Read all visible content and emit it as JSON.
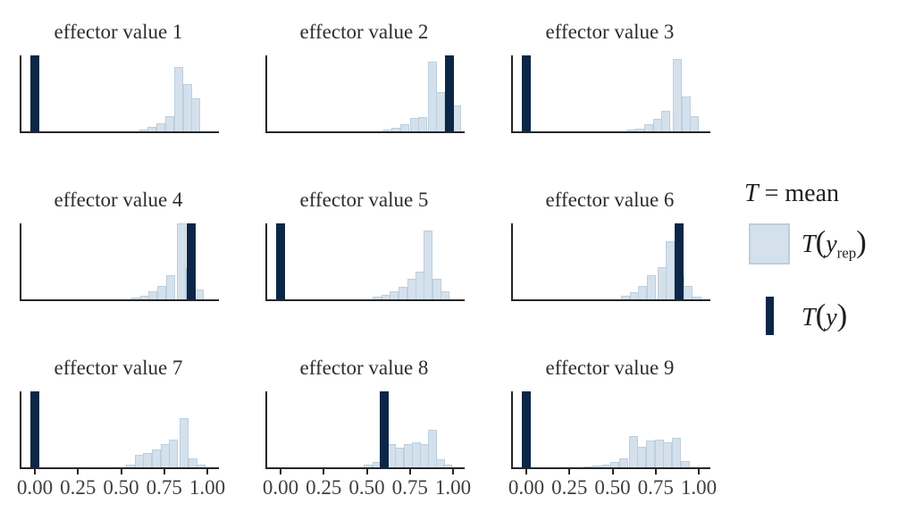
{
  "figure": {
    "background": "#ffffff"
  },
  "legend": {
    "symbol": "T",
    "definition": "= mean",
    "yrep": {
      "t": "T",
      "open": "(",
      "y": "y",
      "sub": "rep",
      "close": ")"
    },
    "y": {
      "t": "T",
      "open": "(",
      "y": "y",
      "close": ")"
    }
  },
  "axis": {
    "tick_labels": [
      "0.00",
      "0.25",
      "0.50",
      "0.75",
      "1.00"
    ],
    "tick_values": [
      0,
      0.25,
      0.5,
      0.75,
      1
    ]
  },
  "chart_data": {
    "type": "histogram-grid",
    "title": "",
    "stat": "mean",
    "xlabel": "",
    "ylabel": "",
    "xlim": [
      -0.08,
      1.07
    ],
    "binwidth": 0.05,
    "grid": false,
    "legend_position": "right",
    "series_legend": [
      {
        "name": "T(y_rep)",
        "style": "light-histogram"
      },
      {
        "name": "T(y)",
        "style": "dark-bar"
      }
    ],
    "colors": {
      "t_yrep_fill": "#d4e1ec",
      "t_yrep_border": "#bccfdd",
      "t_y": "#0c2647",
      "axis": "#262626",
      "tick_text": "#3f3f3f"
    },
    "panels": [
      {
        "title": "effector value 1",
        "t_y": 0.0,
        "show_axis": false,
        "bars": [
          [
            0.63,
            0.02
          ],
          [
            0.68,
            0.06
          ],
          [
            0.73,
            0.11
          ],
          [
            0.78,
            0.2
          ],
          [
            0.835,
            0.85
          ],
          [
            0.885,
            0.62
          ],
          [
            0.935,
            0.44
          ]
        ]
      },
      {
        "title": "effector value 2",
        "t_y": 0.98,
        "show_axis": false,
        "bars": [
          [
            0.62,
            0.02
          ],
          [
            0.67,
            0.05
          ],
          [
            0.72,
            0.09
          ],
          [
            0.775,
            0.18
          ],
          [
            0.825,
            0.19
          ],
          [
            0.88,
            0.92
          ],
          [
            0.93,
            0.52
          ],
          [
            1.02,
            0.34
          ]
        ]
      },
      {
        "title": "effector value 3",
        "t_y": 0.0,
        "show_axis": false,
        "bars": [
          [
            0.61,
            0.02
          ],
          [
            0.66,
            0.04
          ],
          [
            0.71,
            0.09
          ],
          [
            0.76,
            0.16
          ],
          [
            0.81,
            0.27
          ],
          [
            0.875,
            0.95
          ],
          [
            0.925,
            0.46
          ],
          [
            0.975,
            0.2
          ]
        ]
      },
      {
        "title": "effector value 4",
        "t_y": 0.905,
        "show_axis": false,
        "bars": [
          [
            0.585,
            0.02
          ],
          [
            0.635,
            0.05
          ],
          [
            0.685,
            0.1
          ],
          [
            0.735,
            0.18
          ],
          [
            0.785,
            0.32
          ],
          [
            0.85,
            1.0
          ],
          [
            0.9,
            0.41
          ],
          [
            0.955,
            0.13
          ]
        ]
      },
      {
        "title": "effector value 5",
        "t_y": 0.0,
        "show_axis": false,
        "bars": [
          [
            0.56,
            0.03
          ],
          [
            0.61,
            0.06
          ],
          [
            0.66,
            0.11
          ],
          [
            0.71,
            0.17
          ],
          [
            0.76,
            0.27
          ],
          [
            0.81,
            0.37
          ],
          [
            0.855,
            0.91
          ],
          [
            0.905,
            0.27
          ],
          [
            0.955,
            0.11
          ]
        ]
      },
      {
        "title": "effector value 6",
        "t_y": 0.885,
        "show_axis": false,
        "bars": [
          [
            0.575,
            0.05
          ],
          [
            0.625,
            0.09
          ],
          [
            0.675,
            0.18
          ],
          [
            0.725,
            0.32
          ],
          [
            0.785,
            0.42
          ],
          [
            0.835,
            0.77
          ],
          [
            0.89,
            0.3
          ],
          [
            0.94,
            0.18
          ],
          [
            0.99,
            0.04
          ]
        ]
      },
      {
        "title": "effector value 7",
        "t_y": 0.0,
        "show_axis": true,
        "bars": [
          [
            0.555,
            0.03
          ],
          [
            0.605,
            0.16
          ],
          [
            0.655,
            0.19
          ],
          [
            0.705,
            0.24
          ],
          [
            0.755,
            0.31
          ],
          [
            0.805,
            0.37
          ],
          [
            0.865,
            0.65
          ],
          [
            0.915,
            0.12
          ],
          [
            0.965,
            0.04
          ]
        ]
      },
      {
        "title": "effector value 8",
        "t_y": 0.6,
        "show_axis": true,
        "bars": [
          [
            0.51,
            0.03
          ],
          [
            0.56,
            0.07
          ],
          [
            0.64,
            0.3
          ],
          [
            0.69,
            0.26
          ],
          [
            0.74,
            0.31
          ],
          [
            0.79,
            0.33
          ],
          [
            0.835,
            0.31
          ],
          [
            0.88,
            0.49
          ],
          [
            0.925,
            0.1
          ],
          [
            0.97,
            0.03
          ]
        ]
      },
      {
        "title": "effector value 9",
        "t_y": 0.0,
        "show_axis": true,
        "bars": [
          [
            0.36,
            0.01
          ],
          [
            0.41,
            0.02
          ],
          [
            0.465,
            0.03
          ],
          [
            0.515,
            0.07
          ],
          [
            0.565,
            0.12
          ],
          [
            0.62,
            0.41
          ],
          [
            0.67,
            0.27
          ],
          [
            0.72,
            0.35
          ],
          [
            0.77,
            0.37
          ],
          [
            0.82,
            0.33
          ],
          [
            0.87,
            0.39
          ],
          [
            0.92,
            0.08
          ]
        ]
      }
    ]
  }
}
